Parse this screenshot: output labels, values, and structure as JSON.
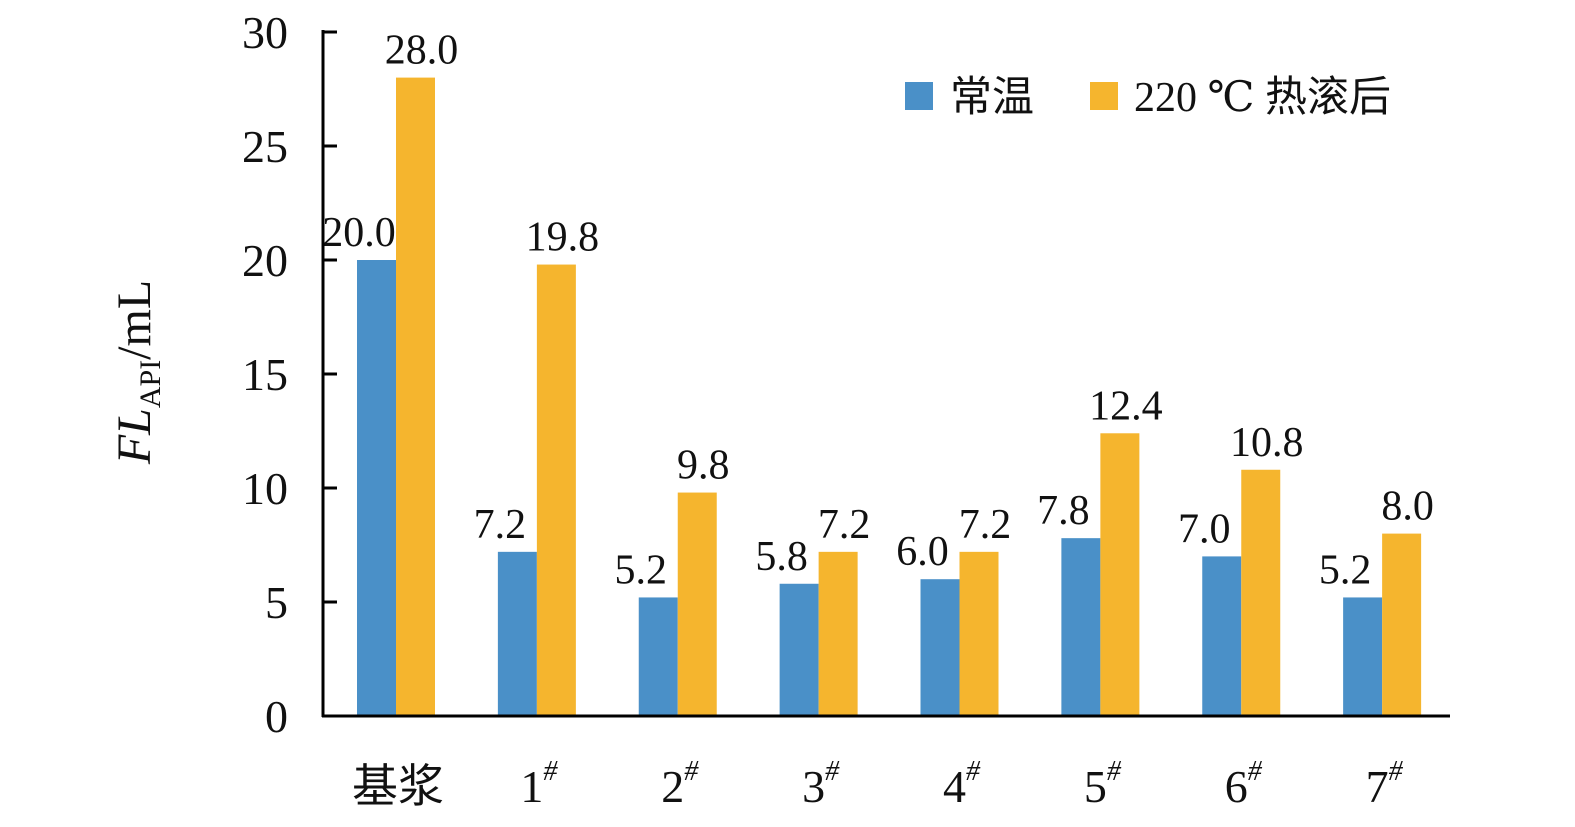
{
  "chart_data": {
    "type": "bar",
    "categories": [
      "基浆",
      "1#",
      "2#",
      "3#",
      "4#",
      "5#",
      "6#",
      "7#"
    ],
    "category_labels": [
      {
        "main": "基浆",
        "sup": ""
      },
      {
        "main": "1",
        "sup": "#"
      },
      {
        "main": "2",
        "sup": "#"
      },
      {
        "main": "3",
        "sup": "#"
      },
      {
        "main": "4",
        "sup": "#"
      },
      {
        "main": "5",
        "sup": "#"
      },
      {
        "main": "6",
        "sup": "#"
      },
      {
        "main": "7",
        "sup": "#"
      }
    ],
    "series": [
      {
        "name": "常温",
        "color": "#4a90c8",
        "values": [
          20.0,
          7.2,
          5.2,
          5.8,
          6.0,
          7.8,
          7.0,
          5.2
        ],
        "labels": [
          "20.0",
          "7.2",
          "5.2",
          "5.8",
          "6.0",
          "7.8",
          "7.0",
          "5.2"
        ]
      },
      {
        "name": "220 ℃ 热滚后",
        "color": "#f5b52e",
        "values": [
          28.0,
          19.8,
          9.8,
          7.2,
          7.2,
          12.4,
          10.8,
          8.0
        ],
        "labels": [
          "28.0",
          "19.8",
          "9.8",
          "7.2",
          "7.2",
          "12.4",
          "10.8",
          "8.0"
        ]
      }
    ],
    "ylabel": {
      "main": "FL",
      "sub": "API",
      "unit": "/mL"
    },
    "ylim": [
      0,
      30
    ],
    "yticks": [
      0,
      5,
      10,
      15,
      20,
      25,
      30
    ],
    "ytick_labels": [
      "0",
      "5",
      "10",
      "15",
      "20",
      "25",
      "30"
    ],
    "legend_position": "top-right",
    "grid": false
  }
}
